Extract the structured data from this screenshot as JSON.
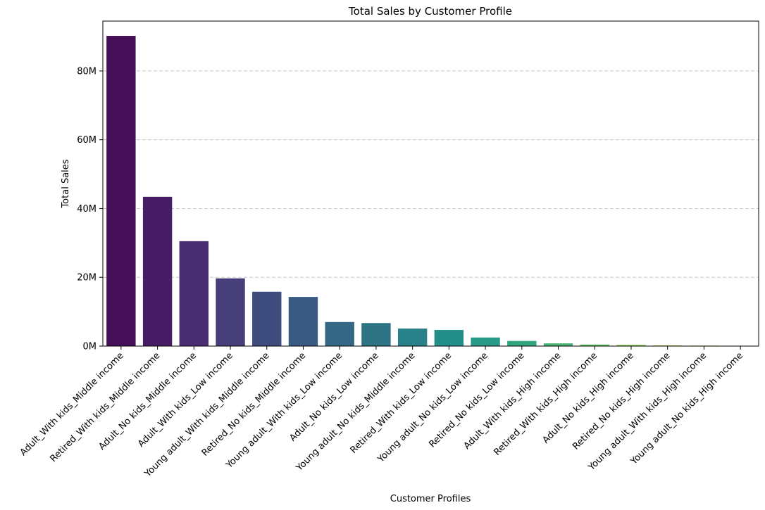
{
  "chart_data": {
    "type": "bar",
    "title": "Total Sales by Customer Profile",
    "xlabel": "Customer Profiles",
    "ylabel": "Total Sales",
    "ylim": [
      0,
      94.5
    ],
    "yticks": [
      0,
      20,
      40,
      60,
      80
    ],
    "ytick_labels": [
      "0M",
      "20M",
      "40M",
      "60M",
      "80M"
    ],
    "grid": "y-dashed",
    "categories": [
      "Adult_With kids_Middle income",
      "Retired_With kids_Middle income",
      "Adult_No kids_Middle income",
      "Adult_With kids_Low income",
      "Young adult_With kids_Middle income",
      "Retired_No kids_Middle income",
      "Young adult_With kids_Low income",
      "Adult_No kids_Low income",
      "Young adult_No kids_Middle income",
      "Retired_With kids_Low income",
      "Young adult_No kids_Low income",
      "Retired_No kids_Low income",
      "Adult_With kids_High income",
      "Retired_With kids_High income",
      "Adult_No kids_High income",
      "Retired_No kids_High income",
      "Young adult_With kids_High income",
      "Young adult_No kids_High income"
    ],
    "values": [
      90.2,
      43.4,
      30.5,
      19.7,
      15.8,
      14.3,
      7.0,
      6.7,
      5.1,
      4.7,
      2.5,
      1.5,
      0.8,
      0.45,
      0.35,
      0.2,
      0.15,
      0.1
    ],
    "colors": [
      "#440f56",
      "#471e66",
      "#482d72",
      "#453e79",
      "#3f4d7e",
      "#385a83",
      "#336783",
      "#2d7384",
      "#29818a",
      "#228d89",
      "#269a86",
      "#30a680",
      "#48b274",
      "#66c165",
      "#84cb55",
      "#a8d641",
      "#ccdd2b",
      "#f0e51f"
    ]
  }
}
